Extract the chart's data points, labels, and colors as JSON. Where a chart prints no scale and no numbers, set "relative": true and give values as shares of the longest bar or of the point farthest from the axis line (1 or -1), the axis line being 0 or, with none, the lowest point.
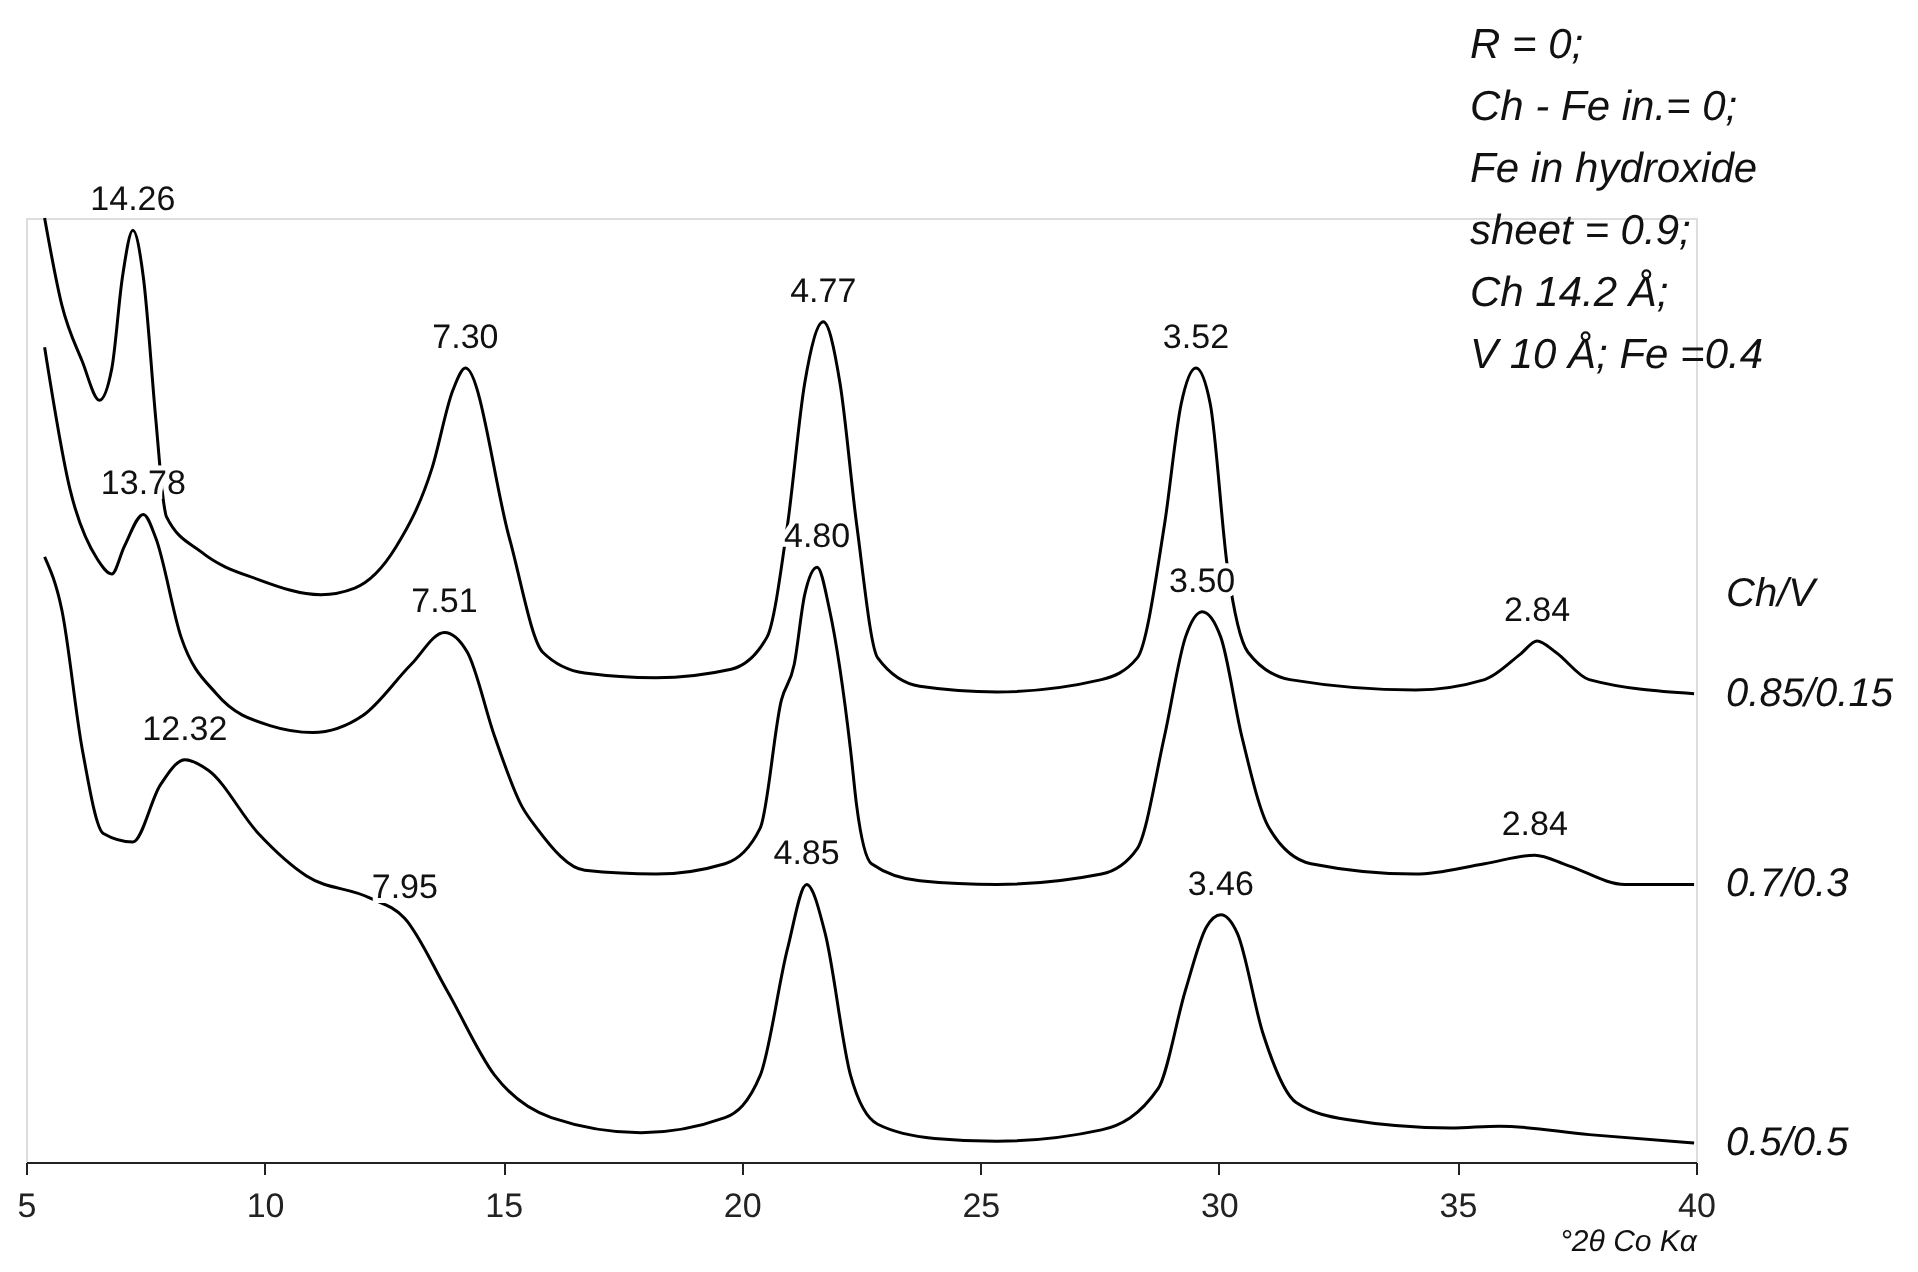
{
  "chart_data": {
    "type": "line",
    "relative": true,
    "xlabel": "°2θ Co Kα",
    "legend_title": "Ch/V",
    "xlim": [
      5,
      40
    ],
    "xticks": [
      5,
      10,
      15,
      20,
      25,
      30,
      35,
      40
    ],
    "grid": false,
    "legend": "right",
    "marker": "none",
    "line_style": "solid",
    "series": [
      {
        "name": "0.85/0.15",
        "color": "#000000",
        "x": [
          5.39,
          5.75,
          6.18,
          6.54,
          6.8,
          7.02,
          7.24,
          7.46,
          7.72,
          7.89,
          7.94,
          8.68,
          9.87,
          11.18,
          11.89,
          12.76,
          13.51,
          13.95,
          14.21,
          15.13,
          15.83,
          16.71,
          18.2,
          19.78,
          20.53,
          20.96,
          21.32,
          21.71,
          22.06,
          22.41,
          22.85,
          23.73,
          25.35,
          27.54,
          28.29,
          28.86,
          29.21,
          29.52,
          29.82,
          30.18,
          30.61,
          31.49,
          34.12,
          35.57,
          36.32,
          36.67,
          37.06,
          37.76,
          39.96
        ],
        "values": [
          1.0,
          0.908,
          0.848,
          0.807,
          0.841,
          0.937,
          0.987,
          0.937,
          0.787,
          0.697,
          0.684,
          0.646,
          0.617,
          0.601,
          0.608,
          0.652,
          0.735,
          0.818,
          0.841,
          0.661,
          0.54,
          0.518,
          0.513,
          0.522,
          0.556,
          0.675,
          0.825,
          0.89,
          0.825,
          0.675,
          0.534,
          0.504,
          0.498,
          0.511,
          0.534,
          0.675,
          0.803,
          0.841,
          0.803,
          0.63,
          0.54,
          0.511,
          0.5,
          0.511,
          0.538,
          0.552,
          0.54,
          0.511,
          0.496
        ]
      },
      {
        "name": "0.7/0.3",
        "color": "#000000",
        "x": [
          5.39,
          5.92,
          6.49,
          6.8,
          7.06,
          7.46,
          7.72,
          8.25,
          8.99,
          10.13,
          11.01,
          12.06,
          13.07,
          13.77,
          14.25,
          14.82,
          15.39,
          15.7,
          16.71,
          18.2,
          19.65,
          20.39,
          20.83,
          21.1,
          21.32,
          21.58,
          21.84,
          22.28,
          22.41,
          22.72,
          23.73,
          25.35,
          27.54,
          28.29,
          28.86,
          29.3,
          29.65,
          30.04,
          30.48,
          31.05,
          31.93,
          34.12,
          35.57,
          36.62,
          37.32,
          38.51,
          39.96
        ],
        "values": [
          0.863,
          0.713,
          0.639,
          0.623,
          0.652,
          0.686,
          0.661,
          0.556,
          0.496,
          0.462,
          0.455,
          0.473,
          0.527,
          0.561,
          0.54,
          0.451,
          0.377,
          0.354,
          0.309,
          0.305,
          0.316,
          0.354,
          0.489,
          0.527,
          0.601,
          0.63,
          0.585,
          0.437,
          0.377,
          0.316,
          0.298,
          0.294,
          0.305,
          0.332,
          0.451,
          0.556,
          0.583,
          0.556,
          0.451,
          0.354,
          0.316,
          0.305,
          0.316,
          0.325,
          0.314,
          0.294,
          0.294
        ]
      },
      {
        "name": "0.5/0.5",
        "color": "#000000",
        "x": [
          5.39,
          5.75,
          6.18,
          6.62,
          7.24,
          7.81,
          8.33,
          8.82,
          9.87,
          10.88,
          12.19,
          12.94,
          13.82,
          14.82,
          16.01,
          17.89,
          19.65,
          20.39,
          20.96,
          21.36,
          21.75,
          22.28,
          22.85,
          24.04,
          25.35,
          27.54,
          28.73,
          29.3,
          29.74,
          30.04,
          30.39,
          30.92,
          31.62,
          32.68,
          34.87,
          35.88,
          37.76,
          39.96
        ],
        "values": [
          0.641,
          0.585,
          0.437,
          0.348,
          0.339,
          0.399,
          0.426,
          0.415,
          0.348,
          0.303,
          0.28,
          0.258,
          0.182,
          0.092,
          0.047,
          0.031,
          0.047,
          0.092,
          0.226,
          0.294,
          0.242,
          0.092,
          0.04,
          0.025,
          0.022,
          0.034,
          0.078,
          0.182,
          0.249,
          0.262,
          0.242,
          0.137,
          0.063,
          0.045,
          0.036,
          0.038,
          0.029,
          0.02
        ]
      }
    ],
    "annotations": [
      "R = 0;",
      "Ch - Fe in.= 0;",
      "Fe in hydroxide",
      "sheet = 0.9;",
      "Ch 14.2 Å;",
      "V 10 Å;  Fe =0.4",
      {
        "text": "14.26",
        "x": 7.24,
        "y": 0.987
      },
      {
        "text": "7.30",
        "x": 14.21,
        "y": 0.841
      },
      {
        "text": "4.77",
        "x": 21.71,
        "y": 0.89
      },
      {
        "text": "3.52",
        "x": 29.52,
        "y": 0.841
      },
      {
        "text": "2.84",
        "x": 36.67,
        "y": 0.552
      },
      {
        "text": "13.78",
        "x": 7.46,
        "y": 0.686
      },
      {
        "text": "7.51",
        "x": 13.77,
        "y": 0.561
      },
      {
        "text": "4.80",
        "x": 21.58,
        "y": 0.63
      },
      {
        "text": "3.50",
        "x": 29.65,
        "y": 0.583
      },
      {
        "text": "2.84",
        "x": 36.62,
        "y": 0.325
      },
      {
        "text": "12.32",
        "x": 8.33,
        "y": 0.426
      },
      {
        "text": "7.95",
        "x": 12.94,
        "y": 0.258
      },
      {
        "text": "4.85",
        "x": 21.36,
        "y": 0.294
      },
      {
        "text": "3.46",
        "x": 30.04,
        "y": 0.262
      }
    ]
  }
}
